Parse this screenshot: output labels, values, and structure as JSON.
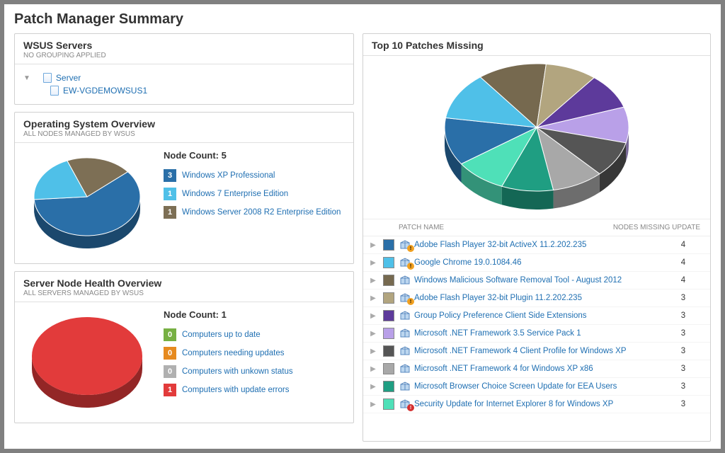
{
  "page_title": "Patch Manager Summary",
  "colors": {
    "link": "#1f6fb2",
    "panel_border": "#d0d0d0"
  },
  "wsus": {
    "title": "WSUS Servers",
    "subtitle": "No grouping applied",
    "root_label": "Server",
    "children": [
      {
        "label": "EW-VGDEMOWSUS1"
      }
    ]
  },
  "os_overview": {
    "title": "Operating System Overview",
    "subtitle": "All nodes managed by WSUS",
    "node_count_label": "Node Count: 5",
    "pie": {
      "type": "pie",
      "slices": [
        {
          "value": 3,
          "color": "#2a6fa8"
        },
        {
          "value": 1,
          "color": "#4fc0e8"
        },
        {
          "value": 1,
          "color": "#7d6f55"
        }
      ],
      "shadow_color": "#5a4f3c"
    },
    "legend": [
      {
        "count": "3",
        "color": "#2a6fa8",
        "label": "Windows XP Professional"
      },
      {
        "count": "1",
        "color": "#4fc0e8",
        "label": "Windows 7 Enterprise Edition"
      },
      {
        "count": "1",
        "color": "#7d6f55",
        "label": "Windows Server 2008 R2 Enterprise Edition"
      }
    ]
  },
  "health_overview": {
    "title": "Server Node Health Overview",
    "subtitle": "All servers managed by WSUS",
    "node_count_label": "Node Count: 1",
    "pie": {
      "type": "pie",
      "slices": [
        {
          "value": 1,
          "color": "#e23b3b"
        }
      ],
      "shadow_color": "#a82a2a"
    },
    "legend": [
      {
        "count": "0",
        "color": "#77b043",
        "label": "Computers up to date"
      },
      {
        "count": "0",
        "color": "#e68a1f",
        "label": "Computers needing updates"
      },
      {
        "count": "0",
        "color": "#b0b0b0",
        "label": "Computers with unkown status"
      },
      {
        "count": "1",
        "color": "#e23b3b",
        "label": "Computers with update errors"
      }
    ]
  },
  "patches": {
    "title": "Top 10 Patches Missing",
    "header_name": "Patch Name",
    "header_count": "Nodes Missing Update",
    "pie": {
      "type": "pie",
      "slices": [
        {
          "value": 4,
          "color": "#2a6fa8"
        },
        {
          "value": 4,
          "color": "#4fc0e8"
        },
        {
          "value": 4,
          "color": "#76694f"
        },
        {
          "value": 3,
          "color": "#b2a57f"
        },
        {
          "value": 3,
          "color": "#5d3a9b"
        },
        {
          "value": 3,
          "color": "#b9a0e8"
        },
        {
          "value": 3,
          "color": "#555555"
        },
        {
          "value": 3,
          "color": "#a8a8a8"
        },
        {
          "value": 3,
          "color": "#1f9e82"
        },
        {
          "value": 3,
          "color": "#4fe0b8"
        }
      ],
      "shadow_scale": 0.18
    },
    "rows": [
      {
        "color": "#2a6fa8",
        "badge": "warn",
        "name": "Adobe Flash Player 32-bit ActiveX 11.2.202.235",
        "count": "4"
      },
      {
        "color": "#4fc0e8",
        "badge": "warn",
        "name": "Google Chrome 19.0.1084.46",
        "count": "4"
      },
      {
        "color": "#76694f",
        "badge": "",
        "name": "Windows Malicious Software Removal Tool - August 2012",
        "count": "4"
      },
      {
        "color": "#b2a57f",
        "badge": "warn",
        "name": "Adobe Flash Player 32-bit Plugin 11.2.202.235",
        "count": "3"
      },
      {
        "color": "#5d3a9b",
        "badge": "",
        "name": "Group Policy Preference Client Side Extensions",
        "count": "3"
      },
      {
        "color": "#b9a0e8",
        "badge": "",
        "name": "Microsoft .NET Framework 3.5 Service Pack 1",
        "count": "3"
      },
      {
        "color": "#555555",
        "badge": "",
        "name": "Microsoft .NET Framework 4 Client Profile for Windows XP",
        "count": "3"
      },
      {
        "color": "#a8a8a8",
        "badge": "",
        "name": "Microsoft .NET Framework 4 for Windows XP x86",
        "count": "3"
      },
      {
        "color": "#1f9e82",
        "badge": "",
        "name": "Microsoft Browser Choice Screen Update for EEA Users",
        "count": "3"
      },
      {
        "color": "#4fe0b8",
        "badge": "err",
        "name": "Security Update for Internet Explorer 8 for Windows XP",
        "count": "3"
      }
    ]
  }
}
